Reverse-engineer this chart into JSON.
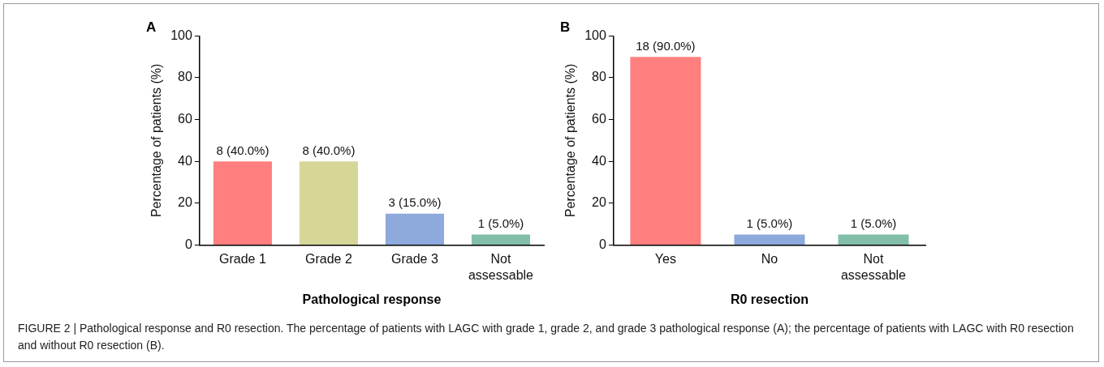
{
  "chart_data": [
    {
      "type": "bar",
      "title": "A",
      "xlabel": "Pathological response",
      "ylabel": "Percentage of patients (%)",
      "categories": [
        "Grade 1",
        "Grade 2",
        "Grade 3",
        "Not assessable"
      ],
      "values": [
        40,
        40,
        15,
        5
      ],
      "colors": [
        "#ff7f7f",
        "#d6d699",
        "#8ea9db",
        "#82bfa8"
      ],
      "value_labels": [
        "8 (40.0%)",
        "8 (40.0%)",
        "3 (15.0%)",
        "1 (5.0%)"
      ],
      "ylim": [
        0,
        100
      ],
      "yticks": [
        0,
        20,
        40,
        60,
        80,
        100
      ],
      "grid": false,
      "legend": false
    },
    {
      "type": "bar",
      "title": "B",
      "xlabel": "R0 resection",
      "ylabel": "Percentage of patients (%)",
      "categories": [
        "Yes",
        "No",
        "Not assessable"
      ],
      "values": [
        90,
        5,
        5
      ],
      "colors": [
        "#ff7f7f",
        "#8ea9db",
        "#82bfa8"
      ],
      "value_labels": [
        "18 (90.0%)",
        "1 (5.0%)",
        "1 (5.0%)"
      ],
      "ylim": [
        0,
        100
      ],
      "yticks": [
        0,
        20,
        40,
        60,
        80,
        100
      ],
      "grid": false,
      "legend": false,
      "annotations": [
        "FIGURE 2 | Pathological response and R0 resection. The percentage of patients with LAGC with grade 1, grade 2, and grade 3 pathological response (A); the percentage of patients with LAGC with R0 resection and without R0 resection (B)."
      ]
    }
  ]
}
